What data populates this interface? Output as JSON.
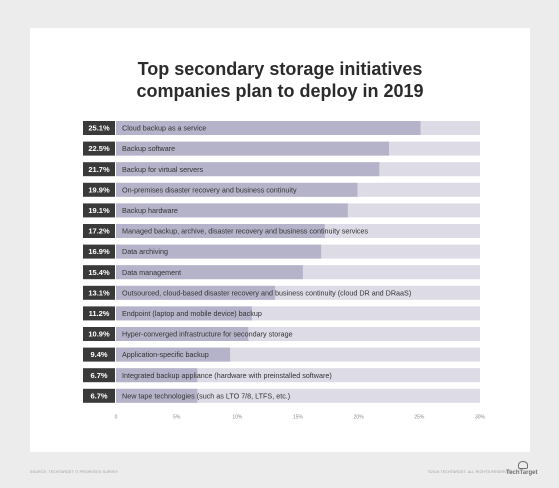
{
  "footer": {
    "source": "SOURCE: TECHTARGET IT PRIORITIES SURVEY",
    "copyright": "©2019 TECHTARGET. ALL RIGHTS RESERVED",
    "logo_text": "TechTarget",
    "logo_icon": "techtarget-logo-icon"
  },
  "colors": {
    "label_box": "#3a3a3a",
    "bar_fill": "#b5b3c9",
    "bar_track": "#dcdbe6",
    "axis_text": "#8a8a8a",
    "page_background": "#ececec",
    "card_background": "#ffffff"
  },
  "chart_data": {
    "type": "bar",
    "orientation": "horizontal",
    "title": "Top secondary storage initiatives companies plan to deploy in 2019",
    "title_lines": [
      "Top secondary storage initiatives",
      "companies plan to deploy in 2019"
    ],
    "categories": [
      "Cloud backup as a service",
      "Backup software",
      "Backup for virtual servers",
      "On-premises disaster recovery and business continuity",
      "Backup hardware",
      "Managed backup, archive, disaster recovery and business continuity services",
      "Data archiving",
      "Data management",
      "Outsourced, cloud-based disaster recovery and business continuity (cloud DR and DRaaS)",
      "Endpoint (laptop and mobile device) backup",
      "Hyper-converged infrastructure for secondary storage",
      "Application-specific backup",
      "Integrated backup appliance (hardware with preinstalled software)",
      "New tape technologies (such as LTO 7/8, LTFS, etc.)"
    ],
    "values": [
      25.1,
      22.5,
      21.7,
      19.9,
      19.1,
      17.2,
      16.9,
      15.4,
      13.1,
      11.2,
      10.9,
      9.4,
      6.7,
      6.7
    ],
    "value_labels": [
      "25.1%",
      "22.5%",
      "21.7%",
      "19.9%",
      "19.1%",
      "17.2%",
      "16.9%",
      "15.4%",
      "13.1%",
      "11.2%",
      "10.9%",
      "9.4%",
      "6.7%",
      "6.7%"
    ],
    "xlim": [
      0,
      30
    ],
    "xticks": [
      0,
      5,
      10,
      15,
      20,
      25,
      30
    ],
    "xtick_labels": [
      "0",
      "5%",
      "10%",
      "15%",
      "20%",
      "25%",
      "30%"
    ],
    "xlabel": "",
    "ylabel": "",
    "grid": false,
    "legend": "none"
  }
}
